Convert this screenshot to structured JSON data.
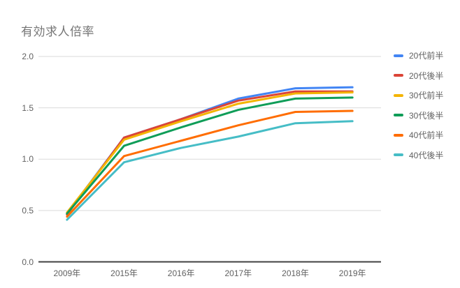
{
  "chart_data": {
    "type": "line",
    "title": "有効求人倍率",
    "categories": [
      "2009年",
      "2015年",
      "2016年",
      "2017年",
      "2018年",
      "2019年"
    ],
    "series": [
      {
        "name": "20代前半",
        "color": "#4285F4",
        "values": [
          0.47,
          1.21,
          1.39,
          1.59,
          1.69,
          1.7
        ]
      },
      {
        "name": "20代後半",
        "color": "#DB4437",
        "values": [
          0.46,
          1.21,
          1.39,
          1.57,
          1.66,
          1.66
        ]
      },
      {
        "name": "30代前半",
        "color": "#F4B400",
        "values": [
          0.48,
          1.19,
          1.37,
          1.54,
          1.64,
          1.65
        ]
      },
      {
        "name": "30代後半",
        "color": "#0F9D58",
        "values": [
          0.47,
          1.13,
          1.31,
          1.48,
          1.59,
          1.6
        ]
      },
      {
        "name": "40代前半",
        "color": "#FF6D01",
        "values": [
          0.44,
          1.03,
          1.18,
          1.33,
          1.46,
          1.47
        ]
      },
      {
        "name": "40代後半",
        "color": "#46BDC6",
        "values": [
          0.41,
          0.97,
          1.11,
          1.22,
          1.35,
          1.37
        ]
      }
    ],
    "xlabel": "",
    "ylabel": "",
    "ylim": [
      0,
      2
    ],
    "yticks": [
      0,
      0.5,
      1,
      1.5,
      2
    ],
    "ytick_labels": [
      "0.0",
      "0.5",
      "1.0",
      "1.5",
      "2.0"
    ],
    "grid": true,
    "legend_position": "right",
    "axis_baseline_color": "#424242",
    "gridline_color": "#dadada",
    "text_color": "#616161",
    "title_color": "#757575"
  }
}
